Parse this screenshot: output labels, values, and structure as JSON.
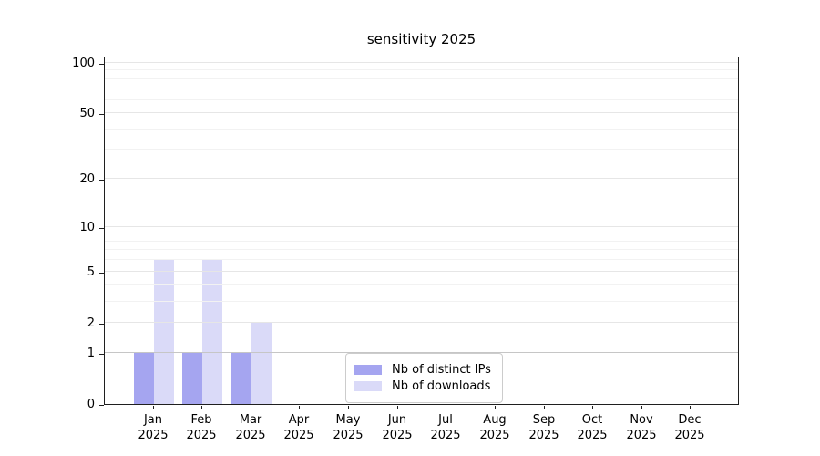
{
  "chart_data": {
    "type": "bar",
    "title": "sensitivity 2025",
    "categories": [
      "Jan",
      "Feb",
      "Mar",
      "Apr",
      "May",
      "Jun",
      "Jul",
      "Aug",
      "Sep",
      "Oct",
      "Nov",
      "Dec"
    ],
    "category_year": "2025",
    "series": [
      {
        "name": "Nb of distinct IPs",
        "color": "#a5a5f0",
        "values": [
          1,
          1,
          1,
          0,
          0,
          0,
          0,
          0,
          0,
          0,
          0,
          0
        ]
      },
      {
        "name": "Nb of downloads",
        "color": "#dadaf8",
        "values": [
          6,
          6,
          2,
          0,
          0,
          0,
          0,
          0,
          0,
          0,
          0,
          0
        ]
      }
    ],
    "xlabel": "",
    "ylabel": "",
    "y_ticks": [
      0,
      1,
      2,
      5,
      10,
      20,
      50,
      100
    ],
    "y_minor_ticks": [
      3,
      4,
      6,
      7,
      8,
      9,
      30,
      40,
      60,
      70,
      80,
      90
    ],
    "ylim": [
      0,
      110
    ],
    "scale": "log1p",
    "grid": true,
    "legend_position": "lower center"
  },
  "colors": {
    "background": "#ffffff",
    "axis": "#1f1f1f",
    "grid_major": "#e6e6e6",
    "grid_minor": "#f2f2f2",
    "grid_baseline_one": "#c6c6c6",
    "legend_border": "#cccccc"
  }
}
